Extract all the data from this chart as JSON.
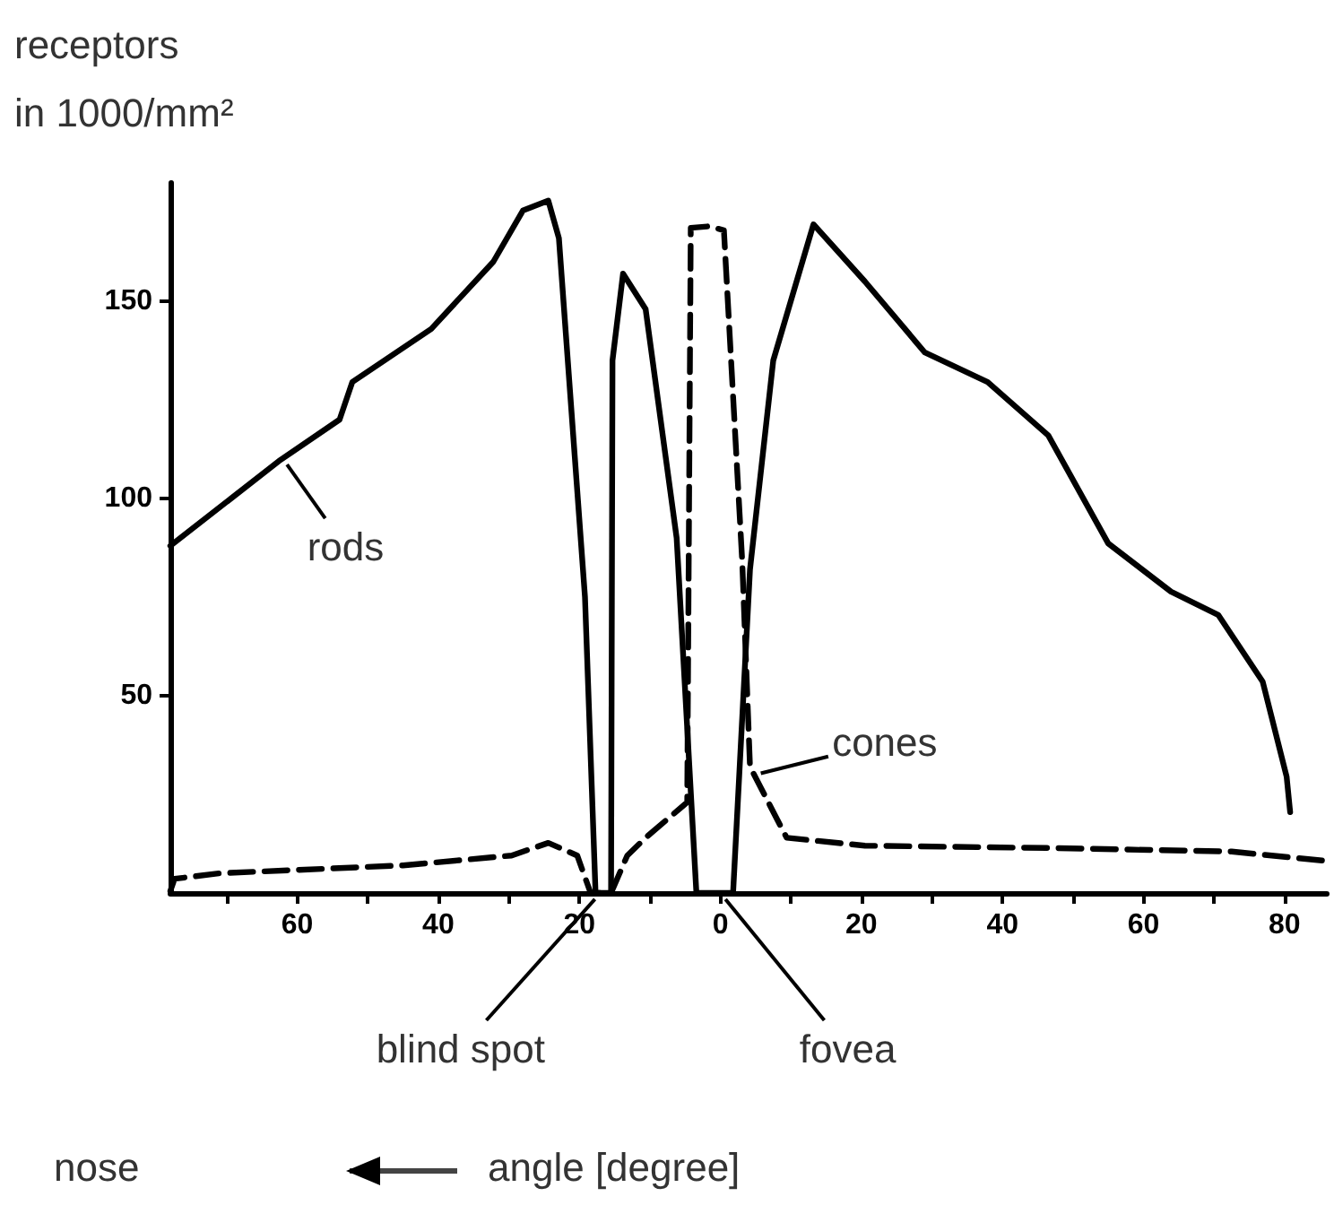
{
  "chart_data": {
    "type": "line",
    "ylabel": "receptors\nin 1000/mm²",
    "xlim": [
      -78,
      86
    ],
    "ylim": [
      0,
      180
    ],
    "xticks": [
      {
        "value": -70,
        "label": null
      },
      {
        "value": -60,
        "label": "60"
      },
      {
        "value": -50,
        "label": null
      },
      {
        "value": -40,
        "label": "40"
      },
      {
        "value": -30,
        "label": null
      },
      {
        "value": -20,
        "label": "20"
      },
      {
        "value": -10,
        "label": null
      },
      {
        "value": 0,
        "label": "0"
      },
      {
        "value": 10,
        "label": null
      },
      {
        "value": 20,
        "label": "20"
      },
      {
        "value": 30,
        "label": null
      },
      {
        "value": 40,
        "label": "40"
      },
      {
        "value": 50,
        "label": null
      },
      {
        "value": 60,
        "label": "60"
      },
      {
        "value": 70,
        "label": null
      },
      {
        "value": 80,
        "label": "80"
      }
    ],
    "yticks": [
      50,
      100,
      150
    ],
    "grid": false,
    "series": [
      {
        "color": "#000000",
        "line_style": "solid",
        "x": [
          -78,
          -62.6,
          -54,
          -52.2,
          -41,
          -32.2,
          -28,
          -24.4,
          -22.9,
          -19.2,
          -17.7,
          -15.5,
          -15.3,
          -13.8,
          -10.6,
          -6.2,
          -3.4,
          1.8,
          4.2,
          7.5,
          13.2,
          20.5,
          29,
          37.9,
          46.5,
          55,
          63.9,
          70.6,
          76.9,
          80.3,
          80.8
        ],
        "values": [
          88,
          109.5,
          120,
          129.5,
          143,
          160,
          173,
          175.5,
          166,
          75,
          0,
          0,
          135,
          157,
          148,
          90,
          0,
          0,
          82,
          135,
          169.5,
          155,
          137,
          129.5,
          116,
          88.6,
          76.4,
          70.5,
          53.6,
          29.5,
          20.5
        ]
      },
      {
        "color": "#000000",
        "line_style": "dashed",
        "x": [
          -78,
          -77.4,
          -71,
          -45,
          -29.6,
          -24.4,
          -20.3,
          -18.4,
          -15.5,
          -13.2,
          -10.6,
          -4.7,
          -4.2,
          -1.6,
          0.5,
          3.1,
          4.2,
          9.4,
          20.5,
          46.5,
          72.5,
          85.5
        ],
        "values": [
          0.5,
          3.6,
          5,
          7,
          9.5,
          12.7,
          9.5,
          0,
          0,
          9.5,
          14,
          23,
          168.6,
          169,
          168,
          84,
          32,
          14,
          12,
          11.4,
          10.5,
          8.2
        ]
      }
    ],
    "annotations": [
      {
        "text": "rods",
        "x": -61.8,
        "y": 109.5
      },
      {
        "text": "cones",
        "x": 5,
        "y": 30
      },
      {
        "text": "blind spot",
        "x": -17,
        "y": 0
      },
      {
        "text": "fovea",
        "x": 0,
        "y": 0
      },
      "nose",
      "angle [degree]"
    ]
  }
}
